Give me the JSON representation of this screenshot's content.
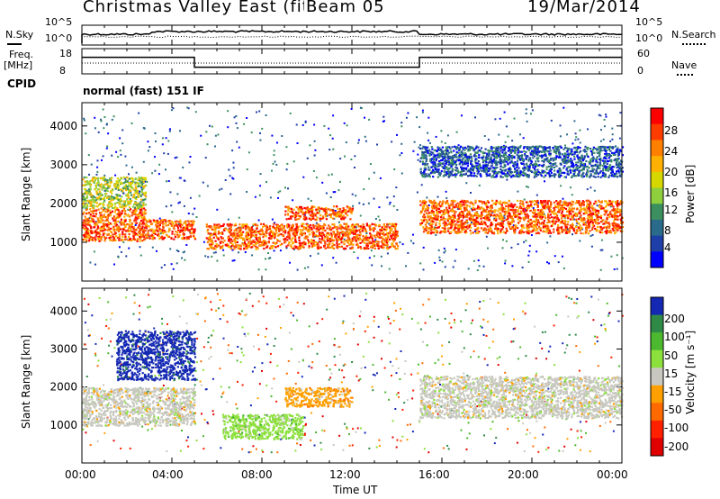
{
  "header": {
    "title": "Christmas Valley East (fitACF)",
    "beam": "Beam 05",
    "date": "19/Mar/2014"
  },
  "noise_panel": {
    "left_label": "N.Sky",
    "right_label": "N.Search",
    "left_ticks": [
      "10^5",
      "10^0"
    ],
    "right_ticks": [
      "10^5",
      "10^0"
    ]
  },
  "freq_panel": {
    "left_label_1": "Freq.",
    "left_label_2": "[MHz]",
    "right_label": "Nave",
    "left_ticks": [
      "18",
      "8"
    ],
    "right_ticks": [
      "60",
      "0"
    ]
  },
  "cpid": {
    "label": "CPID",
    "value": "normal (fast) 151 IF"
  },
  "power_panel": {
    "ylabel": "Slant Range [km]",
    "colorbar_label": "Power [dB]",
    "colorbar_ticks": [
      "28",
      "24",
      "20",
      "16",
      "12",
      "8",
      "4"
    ],
    "colors": [
      "#ff0000",
      "#ff3c00",
      "#ff7f00",
      "#ffb000",
      "#d7d700",
      "#8fce3c",
      "#3c9060",
      "#2a6a8a",
      "#1e3fa8",
      "#0000ff"
    ]
  },
  "velocity_panel": {
    "ylabel": "Slant Range [km]",
    "colorbar_label": "Velocity [m s⁻¹]",
    "colorbar_ticks": [
      "200",
      "100",
      "50",
      "15",
      "-15",
      "-50",
      "-100",
      "-200"
    ],
    "colors": [
      "#1428b4",
      "#2f8a48",
      "#4cb830",
      "#8ce03c",
      "#c8c8c0",
      "#ffa000",
      "#ff6a00",
      "#ff2000",
      "#e00000"
    ]
  },
  "x_axis": {
    "label": "Time UT",
    "ticks": [
      "00:00",
      "04:00",
      "08:00",
      "12:00",
      "16:00",
      "20:00",
      "00:00"
    ]
  },
  "chart_data": {
    "type": "heatmap",
    "x_unit": "hours UT",
    "xlim": [
      0,
      24
    ],
    "ylim": [
      0,
      4600
    ],
    "ylabel": "Slant Range [km]",
    "xlabel": "Time UT",
    "yticks": [
      1000,
      2000,
      3000,
      4000
    ],
    "power_bands": [
      {
        "t0": 0.0,
        "t1": 2.8,
        "r0": 1050,
        "r1": 1900,
        "level": "high"
      },
      {
        "t0": 0.0,
        "t1": 2.8,
        "r0": 1900,
        "r1": 2700,
        "level": "mid"
      },
      {
        "t0": 2.8,
        "t1": 5.0,
        "r0": 1100,
        "r1": 1600,
        "level": "high"
      },
      {
        "t0": 5.5,
        "t1": 14.0,
        "r0": 850,
        "r1": 1500,
        "level": "high"
      },
      {
        "t0": 9.0,
        "t1": 12.0,
        "r0": 1600,
        "r1": 1950,
        "level": "high"
      },
      {
        "t0": 15.0,
        "t1": 24.0,
        "r0": 1250,
        "r1": 2100,
        "level": "high"
      },
      {
        "t0": 15.0,
        "t1": 24.0,
        "r0": 2700,
        "r1": 3500,
        "level": "low"
      }
    ],
    "velocity_bands": [
      {
        "t0": 0.0,
        "t1": 5.0,
        "r0": 1000,
        "r1": 2000,
        "velocity": "-15..15"
      },
      {
        "t0": 6.2,
        "t1": 9.8,
        "r0": 650,
        "r1": 1300,
        "velocity": "15..50"
      },
      {
        "t0": 9.0,
        "t1": 12.0,
        "r0": 1500,
        "r1": 2000,
        "velocity": "-50..-15"
      },
      {
        "t0": 15.0,
        "t1": 24.0,
        "r0": 1200,
        "r1": 2300,
        "velocity": "-15..15"
      },
      {
        "t0": 1.5,
        "t1": 5.0,
        "r0": 2200,
        "r1": 3500,
        "velocity": "50..200"
      }
    ],
    "frequency_MHz": [
      {
        "t0": 0.0,
        "t1": 5.0,
        "value": 15
      },
      {
        "t0": 5.0,
        "t1": 15.0,
        "value": 10
      },
      {
        "t0": 15.0,
        "t1": 24.0,
        "value": 15
      }
    ]
  }
}
